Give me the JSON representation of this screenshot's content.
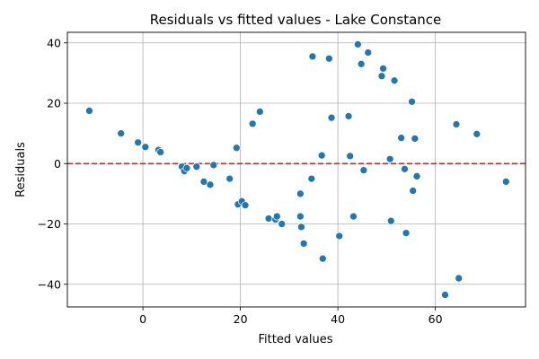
{
  "chart_data": {
    "type": "scatter",
    "title": "Residuals vs fitted values - Lake Constance",
    "xlabel": "Fitted values",
    "ylabel": "Residuals",
    "xlim": [
      -15.5,
      78.5
    ],
    "ylim": [
      -47.5,
      43.5
    ],
    "xticks": [
      0,
      20,
      40,
      60
    ],
    "yticks": [
      -40,
      -20,
      0,
      20,
      40
    ],
    "grid": true,
    "reference_line": {
      "y": 0,
      "color": "#d62728",
      "style": "dashed"
    },
    "point_color": "#1f77b4",
    "points": [
      {
        "x": -11,
        "y": 17.5
      },
      {
        "x": -4.5,
        "y": 10
      },
      {
        "x": -1,
        "y": 7
      },
      {
        "x": 0.5,
        "y": 5.5
      },
      {
        "x": 3.2,
        "y": 4.5
      },
      {
        "x": 3.6,
        "y": 3.8
      },
      {
        "x": 8,
        "y": -1
      },
      {
        "x": 8.5,
        "y": -2.5
      },
      {
        "x": 9,
        "y": -1.5
      },
      {
        "x": 11,
        "y": -1
      },
      {
        "x": 12.5,
        "y": -6
      },
      {
        "x": 13.8,
        "y": -7
      },
      {
        "x": 14.5,
        "y": -0.5
      },
      {
        "x": 17.8,
        "y": -5
      },
      {
        "x": 19.2,
        "y": 5.2
      },
      {
        "x": 19.5,
        "y": -13.5
      },
      {
        "x": 20.3,
        "y": -12.5
      },
      {
        "x": 21,
        "y": -13.8
      },
      {
        "x": 22.5,
        "y": 13.2
      },
      {
        "x": 24,
        "y": 17.2
      },
      {
        "x": 25.8,
        "y": -18.2
      },
      {
        "x": 27.2,
        "y": -18.5
      },
      {
        "x": 27.5,
        "y": -17.5
      },
      {
        "x": 28.5,
        "y": -20
      },
      {
        "x": 32.3,
        "y": -10
      },
      {
        "x": 32.3,
        "y": -17.5
      },
      {
        "x": 32.5,
        "y": -21
      },
      {
        "x": 33,
        "y": -26.5
      },
      {
        "x": 34.6,
        "y": -5
      },
      {
        "x": 34.8,
        "y": 35.5
      },
      {
        "x": 36.7,
        "y": 2.7
      },
      {
        "x": 36.9,
        "y": -31.5
      },
      {
        "x": 38.2,
        "y": 34.8
      },
      {
        "x": 38.7,
        "y": 15.2
      },
      {
        "x": 40.3,
        "y": -24
      },
      {
        "x": 42.2,
        "y": 15.7
      },
      {
        "x": 42.5,
        "y": 2.5
      },
      {
        "x": 43.2,
        "y": -17.5
      },
      {
        "x": 44.1,
        "y": 39.5
      },
      {
        "x": 44.8,
        "y": 33
      },
      {
        "x": 45.3,
        "y": -2.2
      },
      {
        "x": 46.2,
        "y": 36.8
      },
      {
        "x": 49,
        "y": 29
      },
      {
        "x": 49.3,
        "y": 31.5
      },
      {
        "x": 50.7,
        "y": 1.5
      },
      {
        "x": 50.9,
        "y": -19
      },
      {
        "x": 51.6,
        "y": 27.5
      },
      {
        "x": 53,
        "y": 8.5
      },
      {
        "x": 53.7,
        "y": -1.8
      },
      {
        "x": 54,
        "y": -23
      },
      {
        "x": 55.2,
        "y": 20.5
      },
      {
        "x": 55.4,
        "y": -9
      },
      {
        "x": 55.8,
        "y": 8.3
      },
      {
        "x": 56.2,
        "y": -4.2
      },
      {
        "x": 62,
        "y": -43.5
      },
      {
        "x": 64.3,
        "y": 13
      },
      {
        "x": 64.8,
        "y": -38
      },
      {
        "x": 68.5,
        "y": 9.8
      },
      {
        "x": 74.5,
        "y": -6
      }
    ]
  }
}
